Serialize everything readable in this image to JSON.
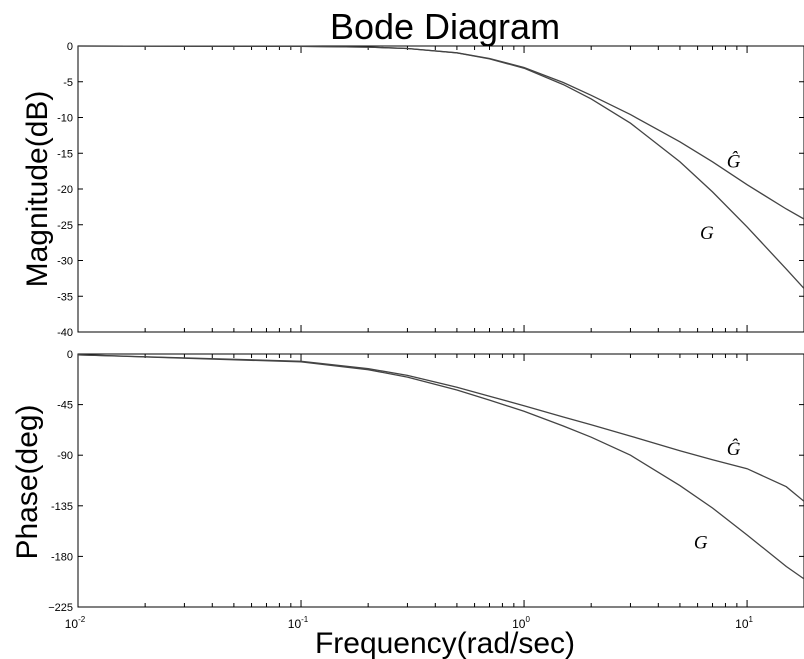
{
  "chart_data": {
    "type": "line",
    "title": "Bode Diagram",
    "xlabel": "Frequency(rad/sec)",
    "x_scale": "log",
    "xlim": [
      0.01,
      18
    ],
    "x_tick_labels": [
      {
        "base": "10",
        "exp": "-2",
        "value": 0.01
      },
      {
        "base": "10",
        "exp": "-1",
        "value": 0.1
      },
      {
        "base": "10",
        "exp": "0",
        "value": 1
      },
      {
        "base": "10",
        "exp": "1",
        "value": 10
      }
    ],
    "grid": false,
    "panels": [
      {
        "name": "magnitude",
        "ylabel": "Magnitude(dB)",
        "ylim": [
          -40,
          0
        ],
        "yticks": [
          0,
          -5,
          -10,
          -15,
          -20,
          -25,
          -30,
          -35,
          -40
        ],
        "ytick_labels": [
          "0",
          "-5",
          "-10",
          "-15",
          "-20",
          "-25",
          "-30",
          "-35",
          "-40"
        ],
        "series": [
          {
            "name": "Ĝ",
            "x": [
              0.01,
              0.1,
              0.2,
              0.3,
              0.5,
              0.7,
              1,
              1.5,
              2,
              3,
              5,
              7,
              10,
              15,
              18
            ],
            "y": [
              0,
              -0.05,
              -0.15,
              -0.35,
              -0.95,
              -1.75,
              -3.0,
              -5.1,
              -6.9,
              -9.6,
              -13.4,
              -16.2,
              -19.4,
              -22.8,
              -24.2
            ]
          },
          {
            "name": "G",
            "x": [
              0.01,
              0.1,
              0.2,
              0.3,
              0.5,
              0.7,
              1,
              1.5,
              2,
              3,
              5,
              7,
              10,
              15,
              18
            ],
            "y": [
              0,
              -0.05,
              -0.15,
              -0.35,
              -0.97,
              -1.8,
              -3.1,
              -5.4,
              -7.4,
              -10.8,
              -16.2,
              -20.4,
              -25.3,
              -31.2,
              -33.9
            ]
          }
        ],
        "annotations": [
          {
            "text": "Ĝ",
            "x": 8.7,
            "y": -17
          },
          {
            "text": "G",
            "x": 6.6,
            "y": -27
          }
        ]
      },
      {
        "name": "phase",
        "ylabel": "Phase(deg)",
        "ylim": [
          -225,
          0
        ],
        "yticks": [
          0,
          -45,
          -90,
          -135,
          -180,
          -225
        ],
        "ytick_labels": [
          "0",
          "-45",
          "-90",
          "-135",
          "-180",
          "−225"
        ],
        "series": [
          {
            "name": "Ĝ",
            "x": [
              0.01,
              0.1,
              0.2,
              0.3,
              0.5,
              0.7,
              1,
              1.5,
              2,
              3,
              5,
              7,
              10,
              15,
              18
            ],
            "y": [
              -0.7,
              -6.5,
              -13,
              -19,
              -29.5,
              -37.5,
              -46,
              -56,
              -63,
              -73,
              -86,
              -94,
              -102,
              -118,
              -131
            ]
          },
          {
            "name": "G",
            "x": [
              0.01,
              0.1,
              0.2,
              0.3,
              0.5,
              0.7,
              1,
              1.5,
              2,
              3,
              5,
              7,
              10,
              15,
              18
            ],
            "y": [
              -0.7,
              -7,
              -14,
              -20.5,
              -32,
              -41,
              -51,
              -64,
              -74,
              -90,
              -117,
              -137,
              -161,
              -189,
              -200
            ]
          }
        ],
        "annotations": [
          {
            "text": "Ĝ",
            "x": 8.7,
            "y": -90
          },
          {
            "text": "G",
            "x": 6.2,
            "y": -173
          }
        ]
      }
    ]
  }
}
